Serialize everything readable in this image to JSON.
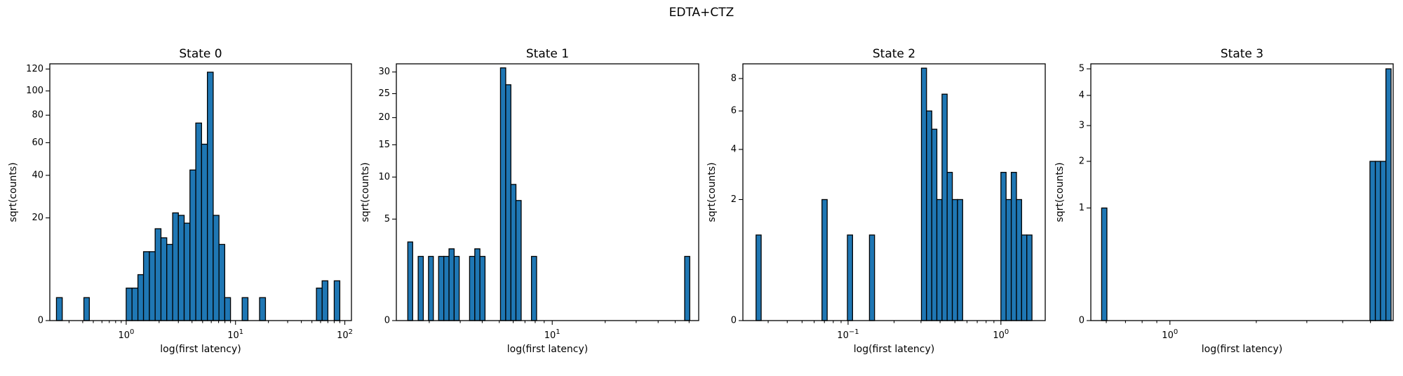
{
  "figure": {
    "suptitle": "EDTA+CTZ"
  },
  "chart_data": [
    {
      "type": "bar",
      "title": "State 0",
      "xlabel": "log(first latency)",
      "ylabel": "sqrt(counts)",
      "xscale": "log",
      "yscale": "sqrt",
      "xlim": [
        0.2,
        115
      ],
      "ylim": [
        0,
        125
      ],
      "xticks": [
        {
          "value": 1,
          "label": "10^0"
        },
        {
          "value": 10,
          "label": "10^1"
        },
        {
          "value": 100,
          "label": "10^2"
        }
      ],
      "yticks": [
        {
          "value": 0,
          "label": "0"
        },
        {
          "value": 20,
          "label": "20"
        },
        {
          "value": 40,
          "label": "40"
        },
        {
          "value": 60,
          "label": "60"
        },
        {
          "value": 80,
          "label": "80"
        },
        {
          "value": 100,
          "label": "100"
        },
        {
          "value": 120,
          "label": "120"
        }
      ],
      "bars": [
        {
          "x0": 0.23,
          "x1": 0.26,
          "value": 1
        },
        {
          "x0": 0.41,
          "x1": 0.46,
          "value": 1
        },
        {
          "x0": 1.0,
          "x1": 1.13,
          "value": 2
        },
        {
          "x0": 1.13,
          "x1": 1.28,
          "value": 2
        },
        {
          "x0": 1.28,
          "x1": 1.44,
          "value": 4
        },
        {
          "x0": 1.44,
          "x1": 1.63,
          "value": 9
        },
        {
          "x0": 1.63,
          "x1": 1.84,
          "value": 9
        },
        {
          "x0": 1.84,
          "x1": 2.08,
          "value": 16
        },
        {
          "x0": 2.08,
          "x1": 2.35,
          "value": 13
        },
        {
          "x0": 2.35,
          "x1": 2.66,
          "value": 11
        },
        {
          "x0": 2.66,
          "x1": 3.0,
          "value": 22
        },
        {
          "x0": 3.0,
          "x1": 3.39,
          "value": 21
        },
        {
          "x0": 3.39,
          "x1": 3.83,
          "value": 18
        },
        {
          "x0": 3.83,
          "x1": 4.33,
          "value": 43
        },
        {
          "x0": 4.33,
          "x1": 4.89,
          "value": 74
        },
        {
          "x0": 4.89,
          "x1": 5.53,
          "value": 59
        },
        {
          "x0": 5.53,
          "x1": 6.25,
          "value": 117
        },
        {
          "x0": 6.25,
          "x1": 7.06,
          "value": 21
        },
        {
          "x0": 7.06,
          "x1": 7.97,
          "value": 11
        },
        {
          "x0": 7.97,
          "x1": 9.0,
          "value": 1
        },
        {
          "x0": 11.5,
          "x1": 13.0,
          "value": 1
        },
        {
          "x0": 16.6,
          "x1": 18.8,
          "value": 1
        },
        {
          "x0": 55.0,
          "x1": 62.0,
          "value": 2
        },
        {
          "x0": 62.0,
          "x1": 70.0,
          "value": 3
        },
        {
          "x0": 80.0,
          "x1": 90.0,
          "value": 3
        }
      ]
    },
    {
      "type": "bar",
      "title": "State 1",
      "xlabel": "log(first latency)",
      "ylabel": "sqrt(counts)",
      "xscale": "log",
      "yscale": "sqrt",
      "xlim": [
        1.3,
        68
      ],
      "ylim": [
        0,
        32
      ],
      "xticks": [
        {
          "value": 10,
          "label": "10^1"
        }
      ],
      "yticks": [
        {
          "value": 0,
          "label": "0"
        },
        {
          "value": 5,
          "label": "5"
        },
        {
          "value": 10,
          "label": "10"
        },
        {
          "value": 15,
          "label": "15"
        },
        {
          "value": 20,
          "label": "20"
        },
        {
          "value": 25,
          "label": "25"
        },
        {
          "value": 30,
          "label": "30"
        }
      ],
      "bars": [
        {
          "x0": 1.51,
          "x1": 1.61,
          "value": 3
        },
        {
          "x0": 1.73,
          "x1": 1.85,
          "value": 2
        },
        {
          "x0": 1.98,
          "x1": 2.11,
          "value": 2
        },
        {
          "x0": 2.26,
          "x1": 2.42,
          "value": 2
        },
        {
          "x0": 2.42,
          "x1": 2.59,
          "value": 2
        },
        {
          "x0": 2.59,
          "x1": 2.77,
          "value": 2.5
        },
        {
          "x0": 2.77,
          "x1": 2.96,
          "value": 2
        },
        {
          "x0": 3.39,
          "x1": 3.63,
          "value": 2
        },
        {
          "x0": 3.63,
          "x1": 3.88,
          "value": 2.5
        },
        {
          "x0": 3.88,
          "x1": 4.15,
          "value": 2
        },
        {
          "x0": 5.08,
          "x1": 5.44,
          "value": 31
        },
        {
          "x0": 5.44,
          "x1": 5.82,
          "value": 27
        },
        {
          "x0": 5.82,
          "x1": 6.22,
          "value": 9
        },
        {
          "x0": 6.22,
          "x1": 6.66,
          "value": 7
        },
        {
          "x0": 7.62,
          "x1": 8.15,
          "value": 2
        },
        {
          "x0": 56.6,
          "x1": 60.5,
          "value": 2
        }
      ]
    },
    {
      "type": "bar",
      "title": "State 2",
      "xlabel": "log(first latency)",
      "ylabel": "sqrt(counts)",
      "xscale": "log",
      "yscale": "sqrt",
      "xlim": [
        0.0205,
        1.95
      ],
      "ylim": [
        0,
        9
      ],
      "xticks": [
        {
          "value": 0.1,
          "label": "10^-1"
        },
        {
          "value": 1,
          "label": "10^0"
        }
      ],
      "yticks": [
        {
          "value": 0,
          "label": "0"
        },
        {
          "value": 2,
          "label": "2"
        },
        {
          "value": 4,
          "label": "4"
        },
        {
          "value": 6,
          "label": "6"
        },
        {
          "value": 8,
          "label": "8"
        }
      ],
      "bars": [
        {
          "x0": 0.025,
          "x1": 0.027,
          "value": 1
        },
        {
          "x0": 0.0675,
          "x1": 0.073,
          "value": 2
        },
        {
          "x0": 0.099,
          "x1": 0.107,
          "value": 1
        },
        {
          "x0": 0.138,
          "x1": 0.149,
          "value": 1
        },
        {
          "x0": 0.302,
          "x1": 0.326,
          "value": 8.7
        },
        {
          "x0": 0.326,
          "x1": 0.353,
          "value": 6
        },
        {
          "x0": 0.353,
          "x1": 0.381,
          "value": 5
        },
        {
          "x0": 0.381,
          "x1": 0.412,
          "value": 2
        },
        {
          "x0": 0.412,
          "x1": 0.445,
          "value": 7
        },
        {
          "x0": 0.445,
          "x1": 0.481,
          "value": 3
        },
        {
          "x0": 0.481,
          "x1": 0.52,
          "value": 2
        },
        {
          "x0": 0.52,
          "x1": 0.562,
          "value": 2
        },
        {
          "x0": 1.0,
          "x1": 1.081,
          "value": 3
        },
        {
          "x0": 1.081,
          "x1": 1.169,
          "value": 2
        },
        {
          "x0": 1.169,
          "x1": 1.264,
          "value": 3
        },
        {
          "x0": 1.264,
          "x1": 1.366,
          "value": 2
        },
        {
          "x0": 1.366,
          "x1": 1.477,
          "value": 1
        },
        {
          "x0": 1.477,
          "x1": 1.597,
          "value": 1
        }
      ]
    },
    {
      "type": "bar",
      "title": "State 3",
      "xlabel": "log(first latency)",
      "ylabel": "sqrt(counts)",
      "xscale": "log",
      "yscale": "sqrt",
      "xlim": [
        0.53,
        6.0
      ],
      "ylim": [
        0,
        5.2
      ],
      "xticks": [
        {
          "value": 1,
          "label": "10^0"
        }
      ],
      "yticks": [
        {
          "value": 0,
          "label": "0"
        },
        {
          "value": 1,
          "label": "1"
        },
        {
          "value": 2,
          "label": "2"
        },
        {
          "value": 3,
          "label": "3"
        },
        {
          "value": 4,
          "label": "4"
        },
        {
          "value": 5,
          "label": "5"
        }
      ],
      "bars": [
        {
          "x0": 0.578,
          "x1": 0.603,
          "value": 1
        },
        {
          "x0": 4.98,
          "x1": 5.2,
          "value": 2
        },
        {
          "x0": 5.2,
          "x1": 5.42,
          "value": 2
        },
        {
          "x0": 5.42,
          "x1": 5.66,
          "value": 2
        },
        {
          "x0": 5.66,
          "x1": 5.9,
          "value": 5
        }
      ]
    }
  ]
}
